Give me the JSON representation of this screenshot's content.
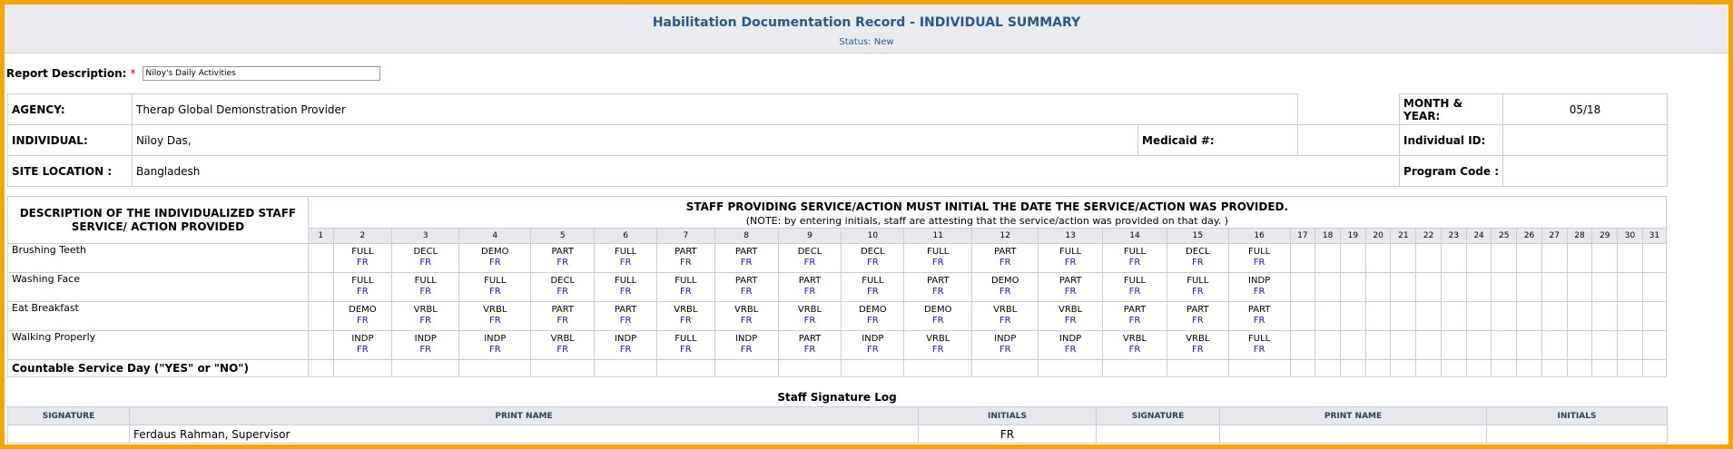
{
  "header": {
    "title": "Habilitation Documentation Record - INDIVIDUAL SUMMARY",
    "status_label": "Status:",
    "status_value": "New"
  },
  "report": {
    "label": "Report Description:",
    "required_mark": "*",
    "value": "Niloy's Daily Activities"
  },
  "info": {
    "agency_label": "AGENCY:",
    "agency_value": "Therap Global Demonstration Provider",
    "month_year_label": "MONTH & YEAR:",
    "month_year_value": "05/18",
    "individual_label": "INDIVIDUAL:",
    "individual_value": "Niloy  Das,",
    "medicaid_label": "Medicaid #:",
    "medicaid_value": "",
    "individual_id_label": "Individual ID:",
    "individual_id_value": "",
    "site_label": "SITE LOCATION :",
    "site_value": "Bangladesh",
    "program_code_label": "Program Code :",
    "program_code_value": ""
  },
  "grid": {
    "desc_header": "DESCRIPTION OF THE INDIVIDUALIZED STAFF SERVICE/ ACTION PROVIDED",
    "instruction": "STAFF PROVIDING SERVICE/ACTION MUST INITIAL THE DATE THE SERVICE/ACTION WAS PROVIDED.",
    "note": "(NOTE: by entering initials, staff are attesting that the service/action was provided on that day. )",
    "days": [
      "1",
      "2",
      "3",
      "4",
      "5",
      "6",
      "7",
      "8",
      "9",
      "10",
      "11",
      "12",
      "13",
      "14",
      "15",
      "16",
      "17",
      "18",
      "19",
      "20",
      "21",
      "22",
      "23",
      "24",
      "25",
      "26",
      "27",
      "28",
      "29",
      "30",
      "31"
    ],
    "activities": [
      {
        "name": "Brushing Teeth",
        "codes": [
          "FULL",
          "DECL",
          "DEMO",
          "PART",
          "FULL",
          "PART",
          "PART",
          "DECL",
          "DECL",
          "FULL",
          "PART",
          "FULL",
          "FULL",
          "DECL",
          "FULL"
        ]
      },
      {
        "name": "Washing Face",
        "codes": [
          "FULL",
          "FULL",
          "FULL",
          "DECL",
          "FULL",
          "FULL",
          "PART",
          "PART",
          "FULL",
          "PART",
          "DEMO",
          "PART",
          "FULL",
          "FULL",
          "INDP"
        ]
      },
      {
        "name": "Eat Breakfast",
        "codes": [
          "DEMO",
          "VRBL",
          "VRBL",
          "PART",
          "PART",
          "VRBL",
          "VRBL",
          "VRBL",
          "DEMO",
          "DEMO",
          "VRBL",
          "VRBL",
          "PART",
          "PART",
          "PART"
        ]
      },
      {
        "name": "Walking Properly",
        "codes": [
          "INDP",
          "INDP",
          "INDP",
          "VRBL",
          "INDP",
          "FULL",
          "INDP",
          "PART",
          "INDP",
          "VRBL",
          "INDP",
          "INDP",
          "VRBL",
          "VRBL",
          "FULL"
        ]
      }
    ],
    "initials": "FR",
    "countable_label": "Countable Service Day (\"YES\" or \"NO\")"
  },
  "signature_log": {
    "title": "Staff Signature Log",
    "headers": [
      "SIGNATURE",
      "PRINT NAME",
      "INITIALS",
      "SIGNATURE",
      "PRINT NAME",
      "INITIALS"
    ],
    "row": [
      "",
      "Ferdaus Rahman, Supervisor",
      "FR",
      "",
      "",
      ""
    ]
  }
}
